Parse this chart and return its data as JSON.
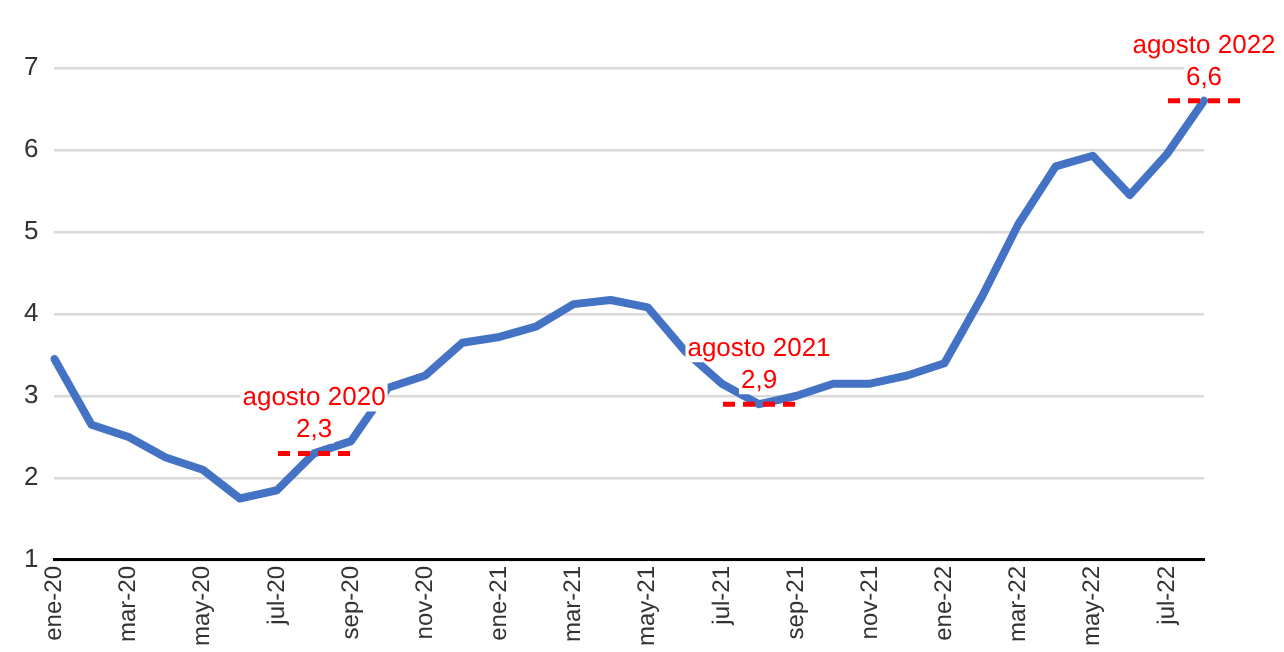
{
  "chart_data": {
    "type": "line",
    "categories": [
      "ene-20",
      null,
      "mar-20",
      null,
      "may-20",
      null,
      "jul-20",
      null,
      "sep-20",
      null,
      "nov-20",
      null,
      "ene-21",
      null,
      "mar-21",
      null,
      "may-21",
      null,
      "jul-21",
      null,
      "sep-21",
      null,
      "nov-21",
      null,
      "ene-22",
      null,
      "mar-22",
      null,
      "may-22",
      null,
      "jul-22",
      null
    ],
    "series": [
      {
        "color": "#4472c4",
        "values": [
          3.45,
          2.65,
          2.5,
          2.25,
          2.1,
          1.75,
          1.85,
          2.3,
          2.45,
          3.1,
          3.25,
          3.65,
          3.72,
          3.85,
          4.12,
          4.17,
          4.08,
          3.55,
          3.15,
          2.9,
          3.0,
          3.15,
          3.15,
          3.25,
          3.4,
          4.2,
          5.1,
          5.8,
          5.93,
          5.45,
          5.95,
          6.6
        ]
      }
    ],
    "ylim": [
      1,
      7
    ],
    "yticks": [
      1,
      2,
      3,
      4,
      5,
      6,
      7
    ],
    "grid": "y",
    "legend": false,
    "marker": "none",
    "line_style": "solid",
    "annotations": [
      {
        "text": "agosto 2020\n2,3",
        "y": 2.3
      },
      {
        "text": "agosto 2021\n2,9",
        "y": 2.9
      },
      {
        "text": "agosto 2022\n6,6",
        "y": 6.6
      }
    ]
  }
}
